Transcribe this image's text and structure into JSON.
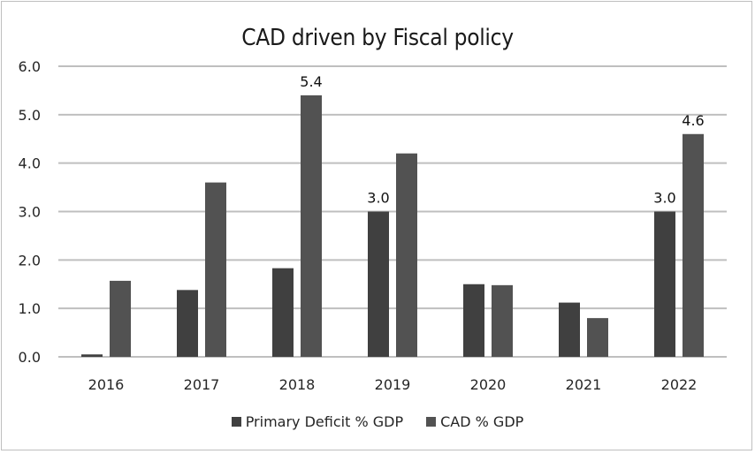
{
  "chart_data": {
    "type": "bar",
    "title": "CAD driven by Fiscal policy",
    "xlabel": "",
    "ylabel": "",
    "categories": [
      "2016",
      "2017",
      "2018",
      "2019",
      "2020",
      "2021",
      "2022"
    ],
    "series": [
      {
        "name": "Primary Deficit % GDP",
        "color": "#404040",
        "values": [
          0.05,
          1.38,
          1.83,
          3.0,
          1.5,
          1.12,
          3.0
        ],
        "labels": [
          null,
          null,
          null,
          "3.0",
          null,
          null,
          "3.0"
        ]
      },
      {
        "name": "CAD % GDP",
        "color": "#525252",
        "values": [
          1.57,
          3.6,
          5.4,
          4.2,
          1.48,
          0.8,
          4.6
        ],
        "labels": [
          null,
          null,
          "5.4",
          null,
          null,
          null,
          "4.6"
        ]
      }
    ],
    "ylim": [
      0,
      6
    ],
    "yticks": [
      "0.0",
      "1.0",
      "2.0",
      "3.0",
      "4.0",
      "5.0",
      "6.0"
    ],
    "grid": true,
    "legend_position": "bottom",
    "gridline_color": "#bfbfbf"
  }
}
